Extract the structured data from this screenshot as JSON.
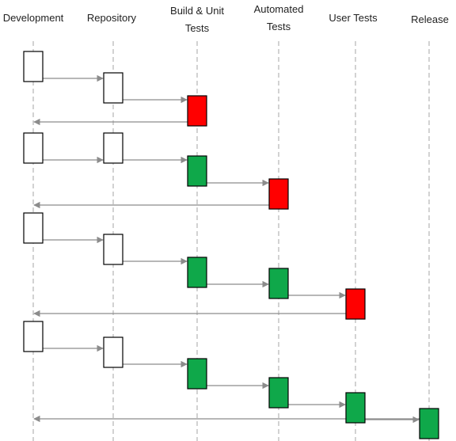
{
  "lanes": [
    {
      "label_lines": [
        "Development"
      ]
    },
    {
      "label_lines": [
        "Repository"
      ]
    },
    {
      "label_lines": [
        "Build & Unit",
        "Tests"
      ]
    },
    {
      "label_lines": [
        "Automated",
        "Tests"
      ]
    },
    {
      "label_lines": [
        "User Tests"
      ]
    },
    {
      "label_lines": [
        "Release"
      ]
    }
  ],
  "colors": {
    "pass": "#0fa84a",
    "fail": "#ff0000",
    "pending": "#ffffff",
    "box_border": "#000000",
    "arrow": "#8c8c8c",
    "lifeline": "#b4b4b4"
  },
  "flows": [
    {
      "steps": [
        {
          "lane": 0,
          "status": "pending"
        },
        {
          "lane": 1,
          "status": "pending"
        },
        {
          "lane": 2,
          "status": "fail"
        }
      ],
      "return_arrow": {
        "from_lane": 2,
        "to_lane": 0
      }
    },
    {
      "steps": [
        {
          "lane": 0,
          "status": "pending"
        },
        {
          "lane": 1,
          "status": "pending"
        },
        {
          "lane": 2,
          "status": "pass"
        },
        {
          "lane": 3,
          "status": "fail"
        }
      ],
      "return_arrow": {
        "from_lane": 3,
        "to_lane": 0
      }
    },
    {
      "steps": [
        {
          "lane": 0,
          "status": "pending"
        },
        {
          "lane": 1,
          "status": "pending"
        },
        {
          "lane": 2,
          "status": "pass"
        },
        {
          "lane": 3,
          "status": "pass"
        },
        {
          "lane": 4,
          "status": "fail"
        }
      ],
      "return_arrow": {
        "from_lane": 4,
        "to_lane": 0
      }
    },
    {
      "steps": [
        {
          "lane": 0,
          "status": "pending"
        },
        {
          "lane": 1,
          "status": "pending"
        },
        {
          "lane": 2,
          "status": "pass"
        },
        {
          "lane": 3,
          "status": "pass"
        },
        {
          "lane": 4,
          "status": "pass"
        },
        {
          "lane": 5,
          "status": "pass"
        }
      ],
      "return_arrow": {
        "from_lane": 5,
        "to_lane": 0
      }
    }
  ]
}
